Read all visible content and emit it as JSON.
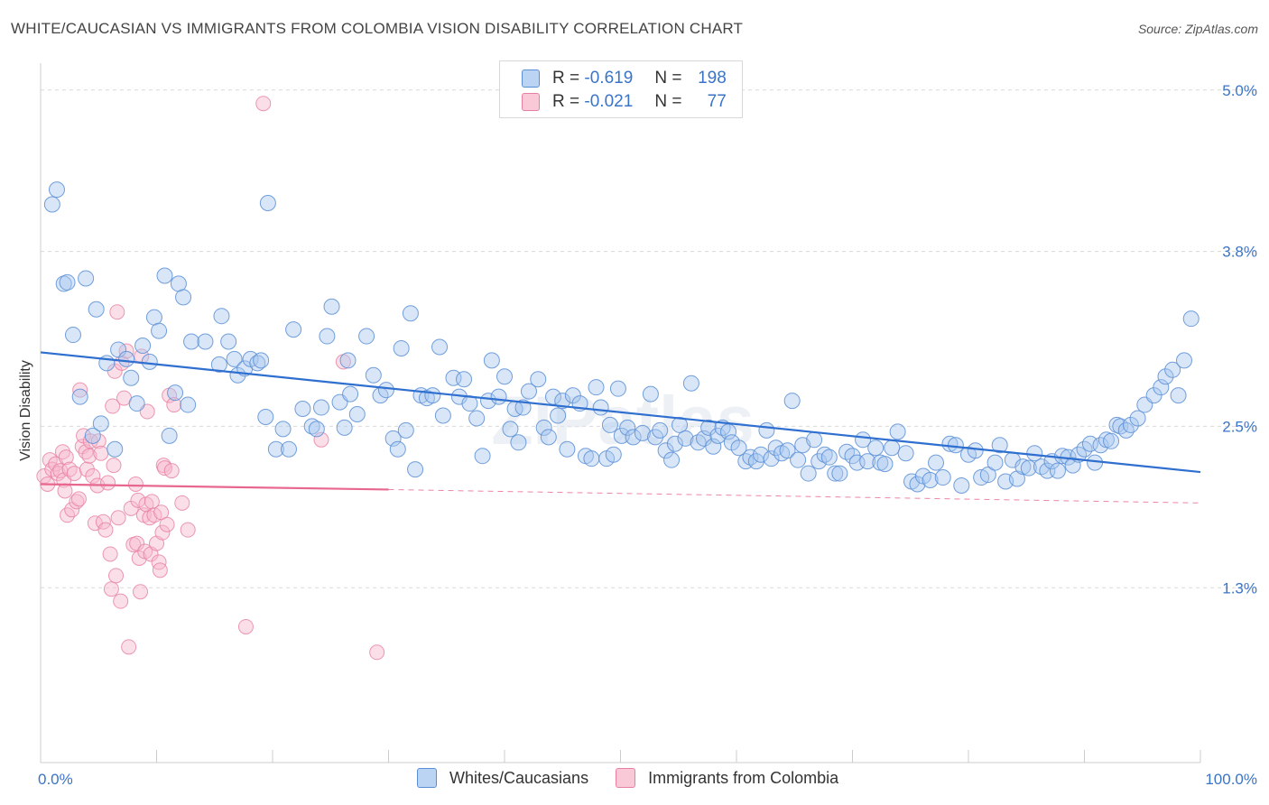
{
  "title": "WHITE/CAUCASIAN VS IMMIGRANTS FROM COLOMBIA VISION DISABILITY CORRELATION CHART",
  "source": "Source: ZipAtlas.com",
  "watermark": "ZIPatlas",
  "colors": {
    "blue_fill": "#a9c8f0",
    "blue_stroke": "#5a8fd6",
    "blue_line": "#2f6fcf",
    "pink_fill": "#f7b9cd",
    "pink_stroke": "#e77fa1",
    "pink_line": "#e8678f",
    "axis_text": "#3a74c9",
    "grid": "#d9d9d9"
  },
  "legend": {
    "rows": [
      {
        "r_label": "R =",
        "r_value": "-0.619",
        "n_label": "N =",
        "n_value": "198"
      },
      {
        "r_label": "R =",
        "r_value": "-0.021",
        "n_label": "N =",
        "n_value": "77"
      }
    ]
  },
  "bottom_legend": {
    "items": [
      "Whites/Caucasians",
      "Immigrants from Colombia"
    ]
  },
  "chart_data": {
    "type": "scatter",
    "xlabel": "",
    "ylabel": "Vision Disability",
    "xlim": [
      0,
      100
    ],
    "ylim": [
      0.0,
      5.2
    ],
    "x_tick_labels": [
      "0.0%",
      "100.0%"
    ],
    "y_ticks": [
      1.3,
      2.5,
      3.8,
      5.0
    ],
    "y_tick_labels": [
      "1.3%",
      "2.5%",
      "3.8%",
      "5.0%"
    ],
    "grid": true,
    "series": [
      {
        "name": "Whites/Caucasians",
        "trend": {
          "x": [
            0,
            100
          ],
          "y": [
            3.05,
            2.16
          ]
        },
        "points": [
          [
            1.0,
            4.15
          ],
          [
            1.4,
            4.26
          ],
          [
            2.0,
            3.56
          ],
          [
            2.3,
            3.57
          ],
          [
            2.8,
            3.18
          ],
          [
            3.4,
            2.72
          ],
          [
            3.9,
            3.6
          ],
          [
            4.5,
            2.43
          ],
          [
            4.8,
            3.37
          ],
          [
            5.2,
            2.52
          ],
          [
            5.7,
            2.97
          ],
          [
            6.4,
            2.33
          ],
          [
            6.7,
            3.07
          ],
          [
            7.4,
            3.0
          ],
          [
            7.8,
            2.86
          ],
          [
            8.3,
            2.67
          ],
          [
            8.8,
            3.1
          ],
          [
            9.4,
            2.98
          ],
          [
            9.8,
            3.31
          ],
          [
            10.2,
            3.21
          ],
          [
            10.7,
            3.62
          ],
          [
            11.1,
            2.43
          ],
          [
            11.6,
            2.75
          ],
          [
            11.9,
            3.56
          ],
          [
            12.3,
            3.46
          ],
          [
            12.7,
            2.66
          ],
          [
            13.0,
            3.13
          ],
          [
            14.2,
            3.13
          ],
          [
            15.4,
            2.96
          ],
          [
            15.6,
            3.32
          ],
          [
            16.2,
            3.13
          ],
          [
            16.7,
            3.0
          ],
          [
            17.0,
            2.88
          ],
          [
            17.6,
            2.93
          ],
          [
            18.1,
            3.0
          ],
          [
            18.7,
            2.97
          ],
          [
            19.0,
            2.99
          ],
          [
            19.4,
            2.57
          ],
          [
            19.6,
            4.16
          ],
          [
            20.3,
            2.33
          ],
          [
            20.9,
            2.48
          ],
          [
            21.4,
            2.33
          ],
          [
            21.8,
            3.22
          ],
          [
            22.6,
            2.63
          ],
          [
            23.4,
            2.5
          ],
          [
            23.8,
            2.48
          ],
          [
            24.2,
            2.64
          ],
          [
            24.7,
            3.17
          ],
          [
            25.1,
            3.39
          ],
          [
            25.8,
            2.68
          ],
          [
            26.2,
            2.49
          ],
          [
            26.5,
            2.99
          ],
          [
            26.7,
            2.74
          ],
          [
            27.3,
            2.59
          ],
          [
            28.1,
            3.17
          ],
          [
            28.7,
            2.88
          ],
          [
            29.3,
            2.73
          ],
          [
            29.8,
            2.77
          ],
          [
            30.4,
            2.41
          ],
          [
            30.8,
            2.33
          ],
          [
            31.1,
            3.08
          ],
          [
            31.5,
            2.47
          ],
          [
            31.9,
            3.34
          ],
          [
            32.3,
            2.18
          ],
          [
            32.8,
            2.73
          ],
          [
            33.3,
            2.71
          ],
          [
            33.8,
            2.73
          ],
          [
            34.4,
            3.09
          ],
          [
            34.7,
            2.58
          ],
          [
            35.6,
            2.86
          ],
          [
            36.1,
            2.72
          ],
          [
            36.5,
            2.85
          ],
          [
            37.0,
            2.67
          ],
          [
            37.6,
            2.56
          ],
          [
            38.1,
            2.28
          ],
          [
            38.6,
            2.69
          ],
          [
            38.9,
            2.99
          ],
          [
            39.5,
            2.72
          ],
          [
            40.0,
            2.87
          ],
          [
            40.5,
            2.48
          ],
          [
            40.9,
            2.63
          ],
          [
            41.2,
            2.38
          ],
          [
            41.6,
            2.64
          ],
          [
            42.1,
            2.76
          ],
          [
            42.9,
            2.85
          ],
          [
            43.4,
            2.49
          ],
          [
            43.8,
            2.42
          ],
          [
            44.2,
            2.72
          ],
          [
            44.6,
            2.58
          ],
          [
            45.0,
            2.69
          ],
          [
            45.4,
            2.33
          ],
          [
            45.9,
            2.73
          ],
          [
            46.5,
            2.67
          ],
          [
            47.0,
            2.28
          ],
          [
            47.5,
            2.26
          ],
          [
            47.9,
            2.79
          ],
          [
            48.3,
            2.64
          ],
          [
            48.8,
            2.26
          ],
          [
            49.1,
            2.51
          ],
          [
            49.4,
            2.29
          ],
          [
            49.8,
            2.78
          ],
          [
            50.1,
            2.43
          ],
          [
            50.6,
            2.49
          ],
          [
            51.1,
            2.42
          ],
          [
            51.9,
            2.45
          ],
          [
            52.6,
            2.74
          ],
          [
            53.0,
            2.42
          ],
          [
            53.4,
            2.47
          ],
          [
            53.9,
            2.32
          ],
          [
            54.4,
            2.25
          ],
          [
            54.7,
            2.37
          ],
          [
            55.1,
            2.51
          ],
          [
            55.6,
            2.41
          ],
          [
            56.1,
            2.82
          ],
          [
            56.7,
            2.38
          ],
          [
            57.2,
            2.41
          ],
          [
            57.6,
            2.49
          ],
          [
            58.0,
            2.35
          ],
          [
            58.4,
            2.43
          ],
          [
            58.8,
            2.49
          ],
          [
            59.3,
            2.46
          ],
          [
            59.6,
            2.38
          ],
          [
            60.2,
            2.34
          ],
          [
            60.8,
            2.24
          ],
          [
            61.2,
            2.27
          ],
          [
            61.7,
            2.24
          ],
          [
            62.1,
            2.29
          ],
          [
            62.6,
            2.47
          ],
          [
            63.0,
            2.26
          ],
          [
            63.4,
            2.34
          ],
          [
            63.9,
            2.3
          ],
          [
            64.4,
            2.32
          ],
          [
            64.8,
            2.69
          ],
          [
            65.3,
            2.25
          ],
          [
            65.7,
            2.36
          ],
          [
            66.2,
            2.15
          ],
          [
            66.7,
            2.4
          ],
          [
            67.1,
            2.24
          ],
          [
            67.6,
            2.29
          ],
          [
            68.0,
            2.27
          ],
          [
            68.5,
            2.15
          ],
          [
            68.9,
            2.15
          ],
          [
            69.5,
            2.31
          ],
          [
            70.0,
            2.28
          ],
          [
            70.4,
            2.23
          ],
          [
            70.9,
            2.4
          ],
          [
            71.3,
            2.24
          ],
          [
            72.0,
            2.34
          ],
          [
            72.4,
            2.23
          ],
          [
            72.8,
            2.22
          ],
          [
            73.4,
            2.34
          ],
          [
            73.9,
            2.46
          ],
          [
            74.6,
            2.3
          ],
          [
            75.1,
            2.09
          ],
          [
            75.6,
            2.07
          ],
          [
            76.1,
            2.13
          ],
          [
            76.7,
            2.1
          ],
          [
            77.2,
            2.23
          ],
          [
            77.8,
            2.12
          ],
          [
            78.4,
            2.37
          ],
          [
            78.9,
            2.36
          ],
          [
            79.4,
            2.06
          ],
          [
            80.0,
            2.29
          ],
          [
            80.6,
            2.32
          ],
          [
            81.1,
            2.12
          ],
          [
            81.7,
            2.14
          ],
          [
            82.3,
            2.23
          ],
          [
            82.7,
            2.36
          ],
          [
            83.2,
            2.09
          ],
          [
            83.8,
            2.25
          ],
          [
            84.2,
            2.11
          ],
          [
            84.7,
            2.2
          ],
          [
            85.2,
            2.19
          ],
          [
            85.7,
            2.3
          ],
          [
            86.3,
            2.2
          ],
          [
            86.8,
            2.17
          ],
          [
            87.2,
            2.24
          ],
          [
            87.7,
            2.17
          ],
          [
            88.1,
            2.28
          ],
          [
            88.6,
            2.27
          ],
          [
            89.0,
            2.21
          ],
          [
            89.5,
            2.29
          ],
          [
            90.0,
            2.33
          ],
          [
            90.5,
            2.37
          ],
          [
            90.9,
            2.23
          ],
          [
            91.4,
            2.36
          ],
          [
            91.9,
            2.4
          ],
          [
            92.3,
            2.39
          ],
          [
            92.8,
            2.51
          ],
          [
            93.1,
            2.5
          ],
          [
            93.6,
            2.47
          ],
          [
            94.0,
            2.51
          ],
          [
            94.6,
            2.56
          ],
          [
            95.2,
            2.66
          ],
          [
            96.0,
            2.73
          ],
          [
            96.6,
            2.79
          ],
          [
            97.0,
            2.87
          ],
          [
            97.6,
            2.92
          ],
          [
            98.1,
            2.73
          ],
          [
            98.6,
            2.99
          ],
          [
            99.2,
            3.3
          ]
        ]
      },
      {
        "name": "Immigrants from Colombia",
        "trend": {
          "x": [
            0,
            30,
            100
          ],
          "y": [
            2.07,
            2.03,
            1.93
          ]
        },
        "points": [
          [
            0.3,
            2.13
          ],
          [
            0.6,
            2.07
          ],
          [
            0.8,
            2.25
          ],
          [
            1.0,
            2.18
          ],
          [
            1.3,
            2.22
          ],
          [
            1.5,
            2.15
          ],
          [
            1.7,
            2.17
          ],
          [
            1.9,
            2.31
          ],
          [
            2.0,
            2.1
          ],
          [
            2.1,
            2.02
          ],
          [
            2.2,
            2.27
          ],
          [
            2.3,
            1.84
          ],
          [
            2.5,
            2.18
          ],
          [
            2.7,
            1.88
          ],
          [
            2.9,
            2.15
          ],
          [
            3.1,
            1.94
          ],
          [
            3.3,
            1.96
          ],
          [
            3.4,
            2.77
          ],
          [
            3.6,
            2.35
          ],
          [
            3.7,
            2.43
          ],
          [
            3.9,
            2.31
          ],
          [
            4.0,
            2.18
          ],
          [
            4.2,
            2.28
          ],
          [
            4.3,
            2.39
          ],
          [
            4.5,
            2.13
          ],
          [
            4.7,
            1.78
          ],
          [
            4.9,
            2.06
          ],
          [
            5.0,
            2.39
          ],
          [
            5.2,
            2.3
          ],
          [
            5.4,
            1.79
          ],
          [
            5.6,
            1.73
          ],
          [
            5.8,
            2.08
          ],
          [
            6.0,
            1.55
          ],
          [
            6.1,
            1.29
          ],
          [
            6.2,
            2.65
          ],
          [
            6.3,
            2.21
          ],
          [
            6.4,
            2.91
          ],
          [
            6.5,
            1.39
          ],
          [
            6.6,
            3.35
          ],
          [
            6.7,
            1.82
          ],
          [
            6.9,
            1.2
          ],
          [
            7.0,
            2.97
          ],
          [
            7.2,
            2.71
          ],
          [
            7.4,
            3.06
          ],
          [
            7.6,
            0.86
          ],
          [
            7.8,
            1.89
          ],
          [
            8.0,
            1.62
          ],
          [
            8.2,
            2.07
          ],
          [
            8.3,
            1.63
          ],
          [
            8.4,
            1.95
          ],
          [
            8.5,
            1.52
          ],
          [
            8.6,
            1.27
          ],
          [
            8.7,
            3.02
          ],
          [
            8.9,
            1.84
          ],
          [
            9.0,
            1.57
          ],
          [
            9.1,
            1.92
          ],
          [
            9.2,
            2.61
          ],
          [
            9.4,
            1.82
          ],
          [
            9.5,
            1.55
          ],
          [
            9.6,
            1.94
          ],
          [
            9.8,
            1.84
          ],
          [
            10.0,
            1.63
          ],
          [
            10.2,
            1.49
          ],
          [
            10.3,
            1.43
          ],
          [
            10.4,
            1.86
          ],
          [
            10.5,
            1.71
          ],
          [
            10.6,
            2.21
          ],
          [
            10.7,
            2.19
          ],
          [
            10.9,
            1.77
          ],
          [
            11.1,
            2.73
          ],
          [
            11.3,
            2.17
          ],
          [
            11.5,
            2.66
          ],
          [
            12.2,
            1.93
          ],
          [
            12.7,
            1.73
          ],
          [
            17.7,
            1.01
          ],
          [
            19.2,
            4.9
          ],
          [
            26.1,
            2.98
          ],
          [
            29.0,
            0.82
          ],
          [
            24.2,
            2.4
          ]
        ]
      }
    ]
  }
}
